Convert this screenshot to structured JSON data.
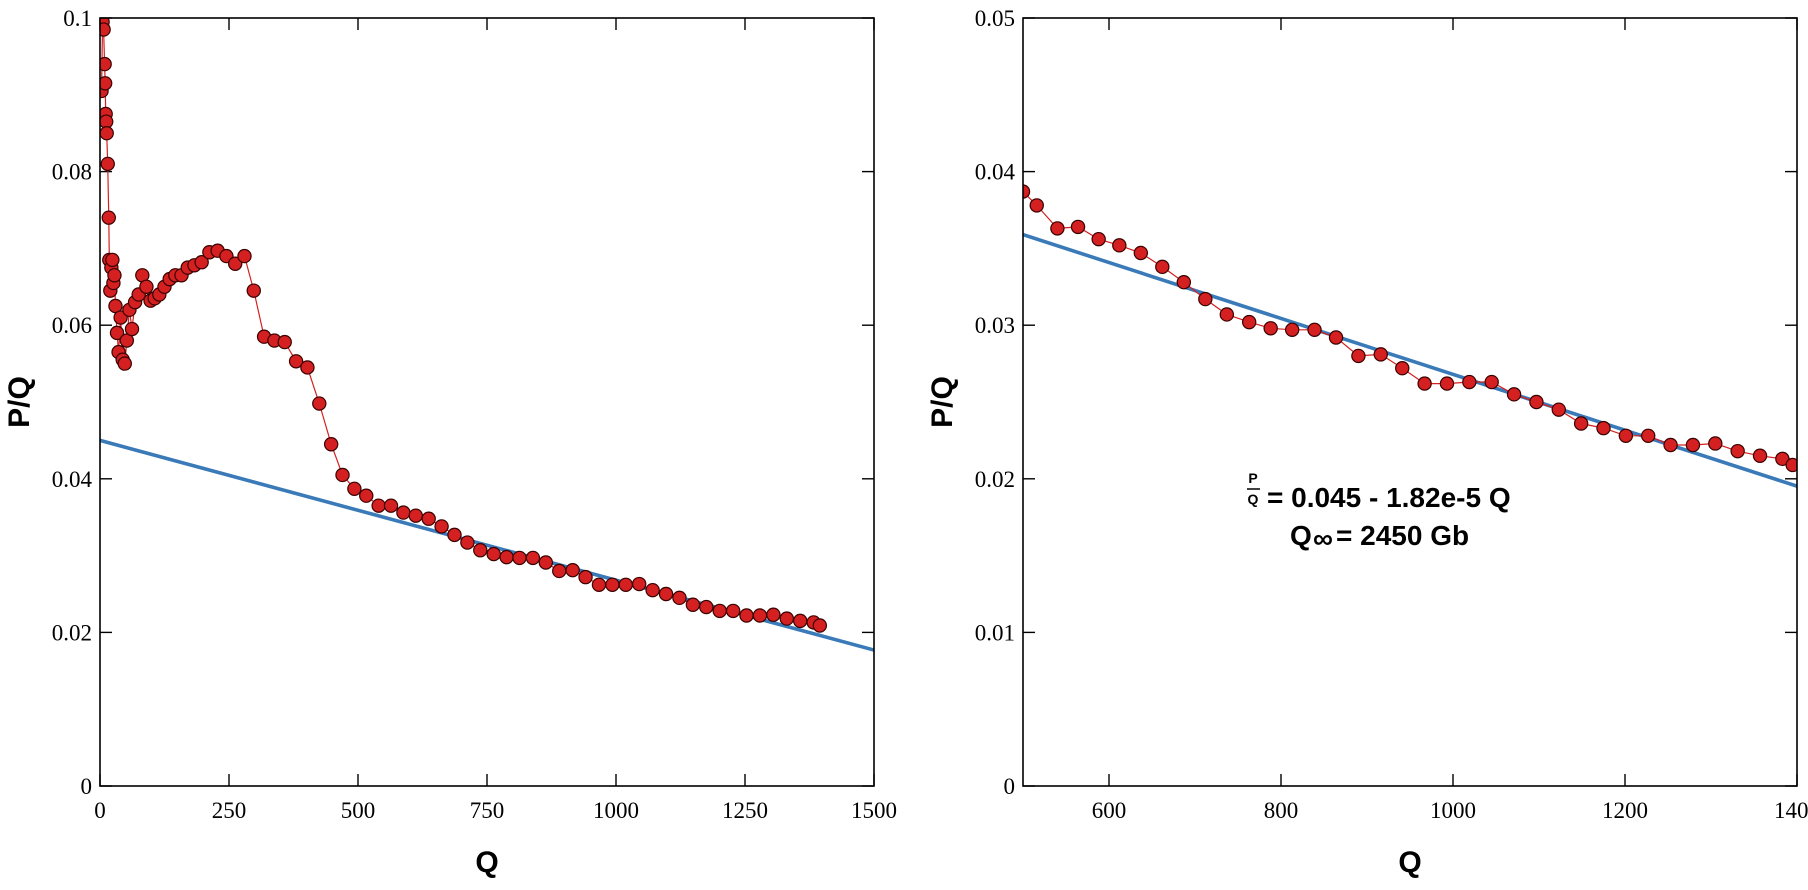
{
  "chart_data": [
    {
      "type": "scatter",
      "xlabel": "Q",
      "ylabel": "P/Q",
      "xlim": [
        0,
        1500
      ],
      "ylim": [
        0,
        0.1
      ],
      "xticks": [
        0,
        250,
        500,
        750,
        1000,
        1250,
        1500
      ],
      "xtick_labels": [
        "0",
        "250",
        "500",
        "750",
        "1000",
        "1250",
        "1500"
      ],
      "yticks": [
        0,
        0.02,
        0.04,
        0.06,
        0.08,
        0.1
      ],
      "ytick_labels": [
        "0",
        "0.02",
        "0.04",
        "0.06",
        "0.08",
        "0.1"
      ],
      "grid": false,
      "colors": {
        "points": "#d42020",
        "points_edge": "#3a0000",
        "connector": "#d42020",
        "fit_line": "#3a7ab8"
      },
      "series": [
        {
          "x": [
            3,
            5,
            7,
            9,
            10,
            11,
            12,
            13,
            15,
            17,
            18,
            20,
            22,
            24,
            26,
            28,
            30,
            33,
            36,
            40,
            44,
            48,
            52,
            57,
            62,
            68,
            75,
            82,
            90,
            98,
            106,
            115,
            125,
            135,
            146,
            158,
            170,
            183,
            197,
            212,
            228,
            245,
            262,
            280,
            298,
            318,
            338,
            358,
            380,
            402,
            425,
            448,
            470,
            493,
            516,
            540,
            564,
            588,
            612,
            637,
            662,
            687,
            712,
            737,
            763,
            788,
            813,
            839,
            864,
            890,
            916,
            941,
            967,
            993,
            1019,
            1045,
            1071,
            1097,
            1123,
            1149,
            1175,
            1201,
            1227,
            1253,
            1279,
            1305,
            1331,
            1357,
            1383,
            1395
          ],
          "y": [
            0.0905,
            0.0995,
            0.0985,
            0.094,
            0.0915,
            0.0875,
            0.0865,
            0.085,
            0.081,
            0.074,
            0.0685,
            0.0645,
            0.0675,
            0.0685,
            0.0655,
            0.0665,
            0.0625,
            0.059,
            0.0565,
            0.061,
            0.0555,
            0.055,
            0.058,
            0.062,
            0.0595,
            0.063,
            0.064,
            0.0665,
            0.065,
            0.0632,
            0.0635,
            0.064,
            0.065,
            0.066,
            0.0665,
            0.0665,
            0.0675,
            0.0678,
            0.0682,
            0.0695,
            0.0697,
            0.069,
            0.068,
            0.069,
            0.0645,
            0.0585,
            0.058,
            0.0578,
            0.0553,
            0.0545,
            0.0498,
            0.0445,
            0.0405,
            0.0387,
            0.0378,
            0.0365,
            0.0365,
            0.0356,
            0.0352,
            0.0348,
            0.0338,
            0.0327,
            0.0317,
            0.0307,
            0.0302,
            0.0298,
            0.0297,
            0.0297,
            0.0291,
            0.028,
            0.0281,
            0.0272,
            0.0262,
            0.0262,
            0.0262,
            0.0263,
            0.0255,
            0.025,
            0.0245,
            0.0236,
            0.0233,
            0.0228,
            0.0228,
            0.0222,
            0.0222,
            0.0223,
            0.0218,
            0.0215,
            0.0213,
            0.0209
          ]
        }
      ],
      "fit_line": {
        "intercept": 0.045,
        "slope": -1.82e-05
      }
    },
    {
      "type": "scatter",
      "xlabel": "Q",
      "ylabel": "P/Q",
      "xlim": [
        500,
        1400
      ],
      "ylim": [
        0,
        0.05
      ],
      "xticks": [
        600,
        800,
        1000,
        1200,
        1400
      ],
      "xtick_labels": [
        "600",
        "800",
        "1000",
        "1200",
        "1400"
      ],
      "yticks": [
        0,
        0.01,
        0.02,
        0.03,
        0.04,
        0.05
      ],
      "ytick_labels": [
        "0",
        "0.01",
        "0.02",
        "0.03",
        "0.04",
        "0.05"
      ],
      "grid": false,
      "colors": {
        "points": "#d42020",
        "points_edge": "#3a0000",
        "connector": "#d42020",
        "fit_line": "#3a7ab8"
      },
      "series": [
        {
          "x": [
            500,
            516,
            540,
            564,
            588,
            612,
            637,
            662,
            687,
            712,
            737,
            763,
            788,
            813,
            839,
            864,
            890,
            916,
            941,
            967,
            993,
            1019,
            1045,
            1071,
            1097,
            1123,
            1149,
            1175,
            1201,
            1227,
            1253,
            1279,
            1305,
            1331,
            1357,
            1383,
            1395
          ],
          "y": [
            0.0387,
            0.0378,
            0.0363,
            0.0364,
            0.0356,
            0.0352,
            0.0347,
            0.0338,
            0.0328,
            0.0317,
            0.0307,
            0.0302,
            0.0298,
            0.0297,
            0.0297,
            0.0292,
            0.028,
            0.0281,
            0.0272,
            0.0262,
            0.0262,
            0.0263,
            0.0263,
            0.0255,
            0.025,
            0.0245,
            0.0236,
            0.0233,
            0.0228,
            0.0228,
            0.0222,
            0.0222,
            0.0223,
            0.0218,
            0.0215,
            0.0213,
            0.0209
          ]
        }
      ],
      "fit_line": {
        "intercept": 0.045,
        "slope": -1.82e-05
      },
      "annotation": {
        "frac_num": "P",
        "frac_den": "Q",
        "equation": "= 0.045 - 1.82e-5 Q",
        "q_symbol": "Q",
        "q_subscript": "∞",
        "q_value": "= 2450 Gb"
      }
    }
  ]
}
